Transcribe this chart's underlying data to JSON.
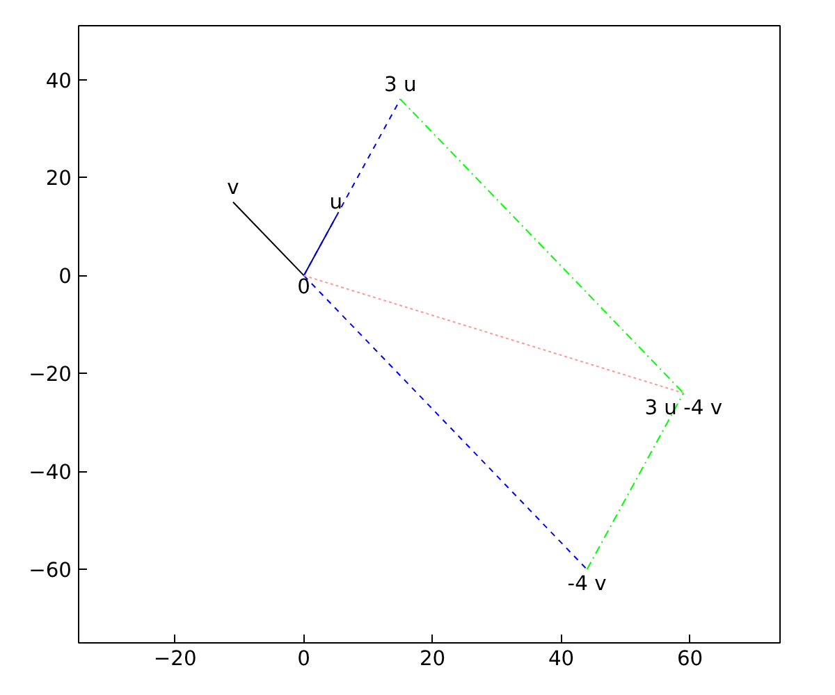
{
  "chart_data": {
    "type": "line",
    "xlim": [
      -35,
      74
    ],
    "ylim": [
      -75,
      51
    ],
    "xticks": [
      -20,
      0,
      20,
      40,
      60
    ],
    "yticks": [
      -60,
      -40,
      -20,
      0,
      20,
      40
    ],
    "grid": false,
    "series": [
      {
        "color": "#000000",
        "x": [
          0,
          -11
        ],
        "values": [
          0,
          15
        ],
        "line_style": "solid"
      },
      {
        "color": "#00008b",
        "x": [
          0,
          5
        ],
        "values": [
          0,
          12
        ],
        "line_style": "solid"
      },
      {
        "color": "#0000ff",
        "x": [
          0,
          15
        ],
        "values": [
          0,
          36
        ],
        "line_style": "dashed"
      },
      {
        "color": "#0000ff",
        "x": [
          0,
          44
        ],
        "values": [
          0,
          -60
        ],
        "line_style": "dashed"
      },
      {
        "color": "#00ff00",
        "x": [
          15,
          59
        ],
        "values": [
          36,
          -24
        ],
        "line_style": "dashdot"
      },
      {
        "color": "#00ff00",
        "x": [
          44,
          59
        ],
        "values": [
          -60,
          -24
        ],
        "line_style": "dashdot"
      },
      {
        "color": "#ff9999",
        "x": [
          0,
          59
        ],
        "values": [
          0,
          -24
        ],
        "line_style": "dotted"
      }
    ],
    "annotations": [
      {
        "text": "v",
        "x": -11,
        "y": 15
      },
      {
        "text": "u",
        "x": 5,
        "y": 12
      },
      {
        "text": "0",
        "x": 0,
        "y": 0
      },
      {
        "text": "3 u",
        "x": 15,
        "y": 36
      },
      {
        "text": "3 u -4 v",
        "x": 59,
        "y": -24
      },
      {
        "text": "-4 v",
        "x": 44,
        "y": -60
      }
    ]
  }
}
